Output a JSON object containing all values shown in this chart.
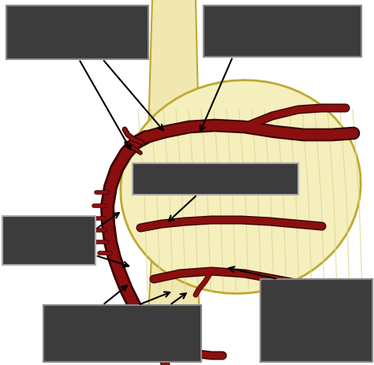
{
  "bg_color": "#ffffff",
  "heart_color": "#f5efbe",
  "heart_outline": "#c8b840",
  "artery_color": "#8b0f0f",
  "artery_outline": "#3a0505",
  "box_color": "#3c3c3c",
  "box_edge": "#777777",
  "box_edge_light": "#aaaaaa",
  "arrow_color": "#000000",
  "striation_color": "#e0d890",
  "fig_width": 4.74,
  "fig_height": 4.64,
  "dpi": 100,
  "vessel_color": "#f0e8b0",
  "vessel_outline": "#c0a830"
}
